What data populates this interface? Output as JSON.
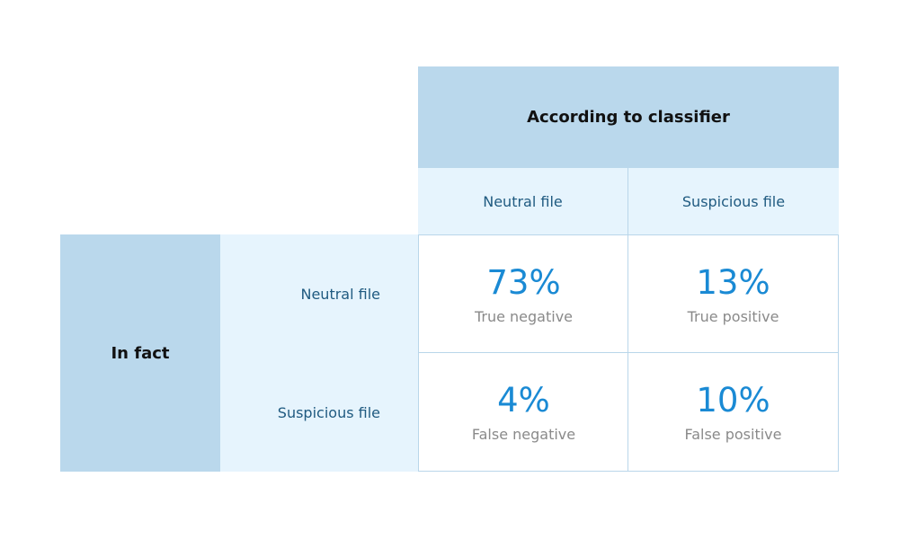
{
  "table": {
    "column_header": "According to classifier",
    "columns": [
      "Neutral file",
      "Suspicious file"
    ],
    "row_header": "In fact",
    "rows": [
      {
        "label": "Neutral file",
        "cells": [
          {
            "value": "73%",
            "label": "True negative"
          },
          {
            "value": "13%",
            "label": "True positive"
          }
        ]
      },
      {
        "label": "Suspicious file",
        "cells": [
          {
            "value": "4%",
            "label": "False negative"
          },
          {
            "value": "10%",
            "label": "False positive"
          }
        ]
      }
    ]
  }
}
